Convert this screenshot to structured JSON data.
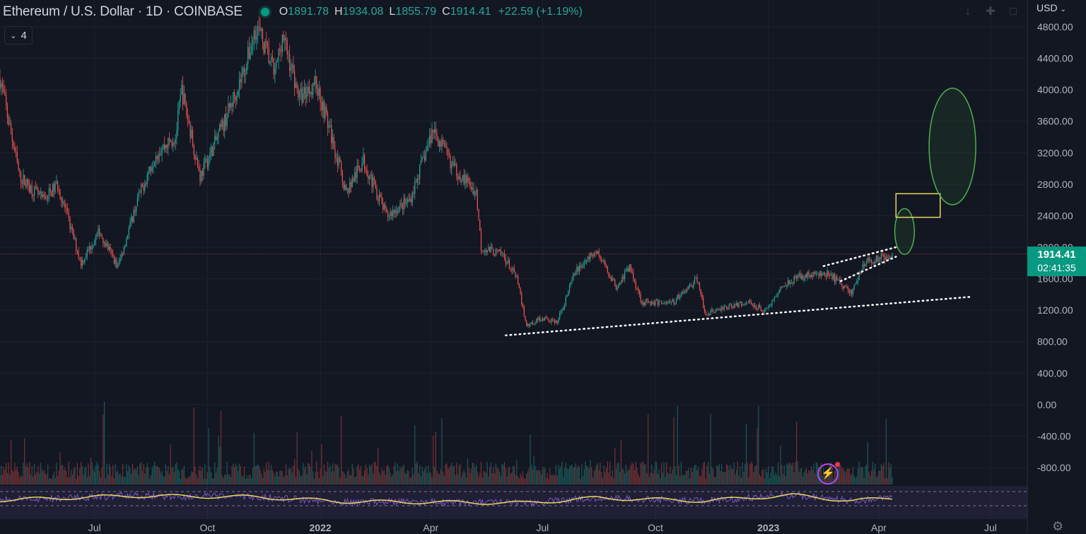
{
  "header": {
    "title": "Ethereum / U.S. Dollar · 1D · COINBASE",
    "open_label": "O",
    "open": "1891.78",
    "high_label": "H",
    "high": "1934.08",
    "low_label": "L",
    "low": "1855.79",
    "close_label": "C",
    "close": "1914.41",
    "change": "+22.59 (+1.19%)",
    "indicators_count": "4"
  },
  "currency": "USD",
  "price_badge": {
    "price": "1914.41",
    "countdown": "02:41:35"
  },
  "colors": {
    "background": "#131722",
    "up": "#26a69a",
    "down": "#ef5350",
    "grid": "#1e222d",
    "rsi": "#7e57c2",
    "rsi_ma": "#e8d65a",
    "price_line": "#f23645",
    "annotation_green": "#4caf50",
    "annotation_yellow": "#e8d65a"
  },
  "icons": [
    "chevron-down-icon",
    "download-icon",
    "fullscreen-icon",
    "snapshot-icon",
    "lightning-icon",
    "gear-icon"
  ],
  "chart_data": {
    "type": "candlestick",
    "title": "Ethereum / U.S. Dollar · 1D · COINBASE",
    "x_ticks": [
      "Jul",
      "Oct",
      "2022",
      "Apr",
      "Jul",
      "Oct",
      "2023",
      "Apr",
      "Jul"
    ],
    "y_ticks": [
      "4800.00",
      "4400.00",
      "4000.00",
      "3600.00",
      "3200.00",
      "2800.00",
      "2400.00",
      "2000.00",
      "1600.00",
      "1200.00",
      "800.00",
      "400.00",
      "0.00",
      "-400.00",
      "-800.00"
    ],
    "ylim": [
      -1000,
      4900
    ],
    "x_start": "2021-04-15",
    "x_end": "2023-07-31",
    "last_price": 1914.41,
    "price_path": [
      [
        "2021-04-15",
        4150
      ],
      [
        "2021-05-01",
        2900
      ],
      [
        "2021-05-20",
        2600
      ],
      [
        "2021-06-01",
        2800
      ],
      [
        "2021-06-20",
        1800
      ],
      [
        "2021-07-05",
        2200
      ],
      [
        "2021-07-20",
        1750
      ],
      [
        "2021-08-05",
        2600
      ],
      [
        "2021-08-20",
        3200
      ],
      [
        "2021-09-05",
        3400
      ],
      [
        "2021-09-10",
        4000
      ],
      [
        "2021-09-25",
        2900
      ],
      [
        "2021-10-15",
        3600
      ],
      [
        "2021-11-01",
        4300
      ],
      [
        "2021-11-10",
        4820
      ],
      [
        "2021-11-25",
        4200
      ],
      [
        "2021-12-01",
        4700
      ],
      [
        "2021-12-15",
        3900
      ],
      [
        "2021-12-28",
        4100
      ],
      [
        "2022-01-05",
        3700
      ],
      [
        "2022-01-22",
        2700
      ],
      [
        "2022-02-05",
        3100
      ],
      [
        "2022-02-24",
        2400
      ],
      [
        "2022-03-15",
        2600
      ],
      [
        "2022-04-03",
        3500
      ],
      [
        "2022-04-20",
        3000
      ],
      [
        "2022-05-08",
        2700
      ],
      [
        "2022-05-12",
        2000
      ],
      [
        "2022-05-30",
        1900
      ],
      [
        "2022-06-10",
        1600
      ],
      [
        "2022-06-18",
        1000
      ],
      [
        "2022-06-30",
        1100
      ],
      [
        "2022-07-13",
        1050
      ],
      [
        "2022-07-28",
        1700
      ],
      [
        "2022-08-14",
        1950
      ],
      [
        "2022-08-30",
        1500
      ],
      [
        "2022-09-10",
        1750
      ],
      [
        "2022-09-20",
        1300
      ],
      [
        "2022-10-15",
        1300
      ],
      [
        "2022-11-05",
        1600
      ],
      [
        "2022-11-10",
        1150
      ],
      [
        "2022-11-30",
        1250
      ],
      [
        "2022-12-15",
        1300
      ],
      [
        "2022-12-30",
        1200
      ],
      [
        "2023-01-15",
        1550
      ],
      [
        "2023-02-01",
        1650
      ],
      [
        "2023-02-20",
        1650
      ],
      [
        "2023-03-10",
        1420
      ],
      [
        "2023-03-20",
        1800
      ],
      [
        "2023-04-12",
        1914.41
      ]
    ],
    "volume_scale": [
      0,
      1
    ],
    "rsi_path": [
      [
        "2021-04-15",
        0.4
      ],
      [
        "2021-07-30",
        0.7
      ],
      [
        "2021-11-10",
        0.62
      ],
      [
        "2022-01-20",
        0.3
      ],
      [
        "2022-06-18",
        0.2
      ],
      [
        "2022-08-14",
        0.55
      ],
      [
        "2022-11-10",
        0.35
      ],
      [
        "2023-01-20",
        0.75
      ],
      [
        "2023-03-10",
        0.35
      ],
      [
        "2023-04-12",
        0.55
      ]
    ],
    "annotations": [
      {
        "kind": "trendline-dotted",
        "from": [
          "2022-06-01",
          880
        ],
        "to": [
          "2023-06-15",
          1370
        ]
      },
      {
        "kind": "trendline-dotted",
        "from": [
          "2023-02-15",
          1760
        ],
        "to": [
          "2023-04-15",
          2000
        ]
      },
      {
        "kind": "trendline-dotted",
        "from": [
          "2023-03-01",
          1570
        ],
        "to": [
          "2023-04-15",
          1880
        ]
      },
      {
        "kind": "ellipse",
        "center": [
          "2023-04-22",
          2200
        ],
        "rx_days": 8,
        "ry": 290
      },
      {
        "kind": "rectangle",
        "from": [
          "2023-04-15",
          2380
        ],
        "to": [
          "2023-05-21",
          2680
        ]
      },
      {
        "kind": "ellipse",
        "center": [
          "2023-05-31",
          3280
        ],
        "rx_days": 19,
        "ry": 740
      }
    ]
  }
}
